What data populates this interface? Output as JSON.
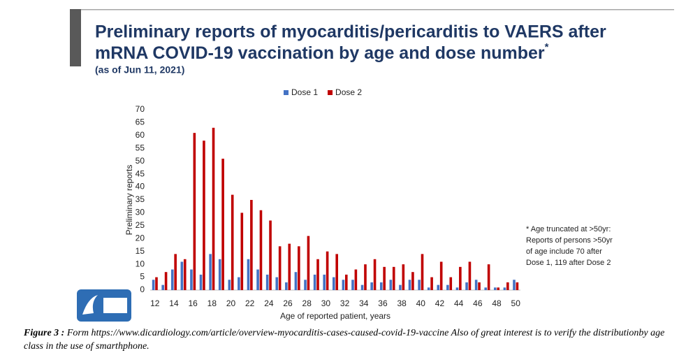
{
  "chart_data": {
    "type": "bar",
    "title": [
      "Preliminary reports of myocarditis/pericarditis to VAERS after",
      "mRNA COVID-19 vaccination by age and dose number"
    ],
    "title_mark": "*",
    "subtitle": "(as of Jun 11, 2021)",
    "ylabel": "Preliminary reports",
    "xlabel": "Age of reported patient, years",
    "note": [
      "* Age truncated at >50yr:",
      "Reports of persons >50yr",
      "of age include 70 after",
      "Dose 1, 119 after Dose 2"
    ],
    "categories": [
      "12",
      null,
      "14",
      null,
      "16",
      null,
      "18",
      null,
      "20",
      null,
      "22",
      null,
      "24",
      null,
      "26",
      null,
      "28",
      null,
      "30",
      null,
      "32",
      null,
      "34",
      null,
      "36",
      null,
      "38",
      null,
      "40",
      null,
      "42",
      null,
      "44",
      null,
      "46",
      null,
      "48",
      null,
      "50"
    ],
    "series": [
      {
        "name": "Dose 1",
        "color": "#4472c4",
        "values": [
          4,
          2,
          8,
          11,
          8,
          6,
          14,
          12,
          4,
          5,
          12,
          8,
          6,
          5,
          3,
          7,
          4,
          6,
          6,
          5,
          4,
          4,
          2,
          3,
          3,
          4,
          2,
          4,
          4,
          1,
          2,
          2,
          1,
          3,
          4,
          1,
          1,
          1,
          4
        ]
      },
      {
        "name": "Dose 2",
        "color": "#c00000",
        "values": [
          5,
          7,
          14,
          12,
          61,
          58,
          63,
          51,
          37,
          30,
          35,
          31,
          27,
          17,
          18,
          17,
          21,
          12,
          15,
          14,
          6,
          8,
          10,
          12,
          9,
          9,
          10,
          7,
          14,
          5,
          11,
          5,
          9,
          11,
          3,
          10,
          1,
          3,
          3
        ]
      }
    ],
    "ylim": [
      0,
      70
    ],
    "yticks": [
      0,
      5,
      10,
      15,
      20,
      25,
      30,
      35,
      40,
      45,
      50,
      55,
      60,
      65,
      70
    ],
    "grid": false,
    "legend": "top"
  },
  "caption": {
    "label": "Figure 3 :",
    "text": "Form https://www.dicardiology.com/article/overview-myocarditis-cases-caused-covid-19-vaccine Also of great interest is to verify the distributionby age class  in the use of smarthphone."
  }
}
